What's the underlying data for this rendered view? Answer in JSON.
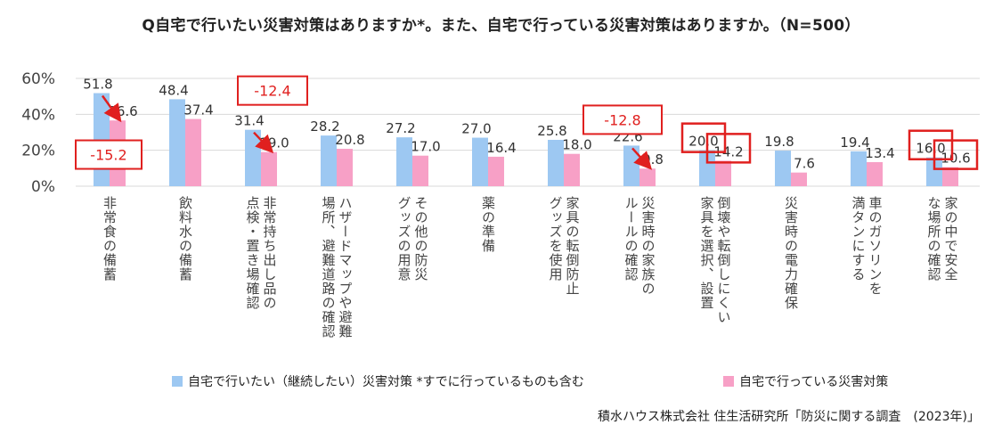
{
  "title": "Q自宅で行いたい災害対策はありますか*。また、自宅で行っている災害対策はありますか。（N=500）",
  "source": "積水ハウス株式会社 住生活研究所「防災に関する調査　(2023年)」",
  "colors": {
    "series1": "#9dc8f2",
    "series2": "#f7a0c6",
    "highlight": "#e0201f",
    "grid": "#d9d9d9"
  },
  "chart_data": {
    "type": "bar",
    "ylim": [
      0,
      60
    ],
    "yticks": [
      "0%",
      "20%",
      "40%",
      "60%"
    ],
    "categories": [
      [
        "非常食の備蓄"
      ],
      [
        "飲料水の備蓄"
      ],
      [
        "非常持ち出し品の",
        "点検・置き場確認"
      ],
      [
        "ハザードマップや避難",
        "場所、避難道路の確認"
      ],
      [
        "その他の防災",
        "グッズの用意"
      ],
      [
        "薬の準備"
      ],
      [
        "家具の転倒防止",
        "グッズを使用"
      ],
      [
        "災害時の家族の",
        "ルールの確認"
      ],
      [
        "倒壊や転倒しにくい",
        "家具を選択、設置"
      ],
      [
        "災害時の電力確保"
      ],
      [
        "車のガソリンを",
        "満タンにする"
      ],
      [
        "家の中で安全",
        "な場所の確認"
      ]
    ],
    "series": [
      {
        "name": "自宅で行いたい（継続したい）災害対策 *すでに行っているものも含む",
        "values": [
          51.8,
          48.4,
          31.4,
          28.2,
          27.2,
          27.0,
          25.8,
          22.6,
          20.0,
          19.8,
          19.4,
          16.0
        ]
      },
      {
        "name": "自宅で行っている災害対策",
        "values": [
          36.6,
          37.4,
          19.0,
          20.8,
          17.0,
          16.4,
          18.0,
          9.8,
          14.2,
          7.6,
          13.4,
          10.6
        ]
      }
    ],
    "value_labels": [
      [
        "51.8",
        "48.4",
        "31.4",
        "28.2",
        "27.2",
        "27.0",
        "25.8",
        "22.6",
        "20.0",
        "19.8",
        "19.4",
        "16.0"
      ],
      [
        "36.6",
        "37.4",
        "19.0",
        "20.8",
        "17.0",
        "16.4",
        "18.0",
        "9.8",
        "14.2",
        "7.6",
        "13.4",
        "10.6"
      ]
    ],
    "annotations": [
      {
        "text": "-15.2",
        "category": 0
      },
      {
        "text": "-12.4",
        "category": 2
      },
      {
        "text": "-12.8",
        "category": 7
      }
    ],
    "boxed_labels": [
      {
        "series": 0,
        "category": 8
      },
      {
        "series": 1,
        "category": 8
      },
      {
        "series": 0,
        "category": 11
      },
      {
        "series": 1,
        "category": 11
      }
    ]
  }
}
